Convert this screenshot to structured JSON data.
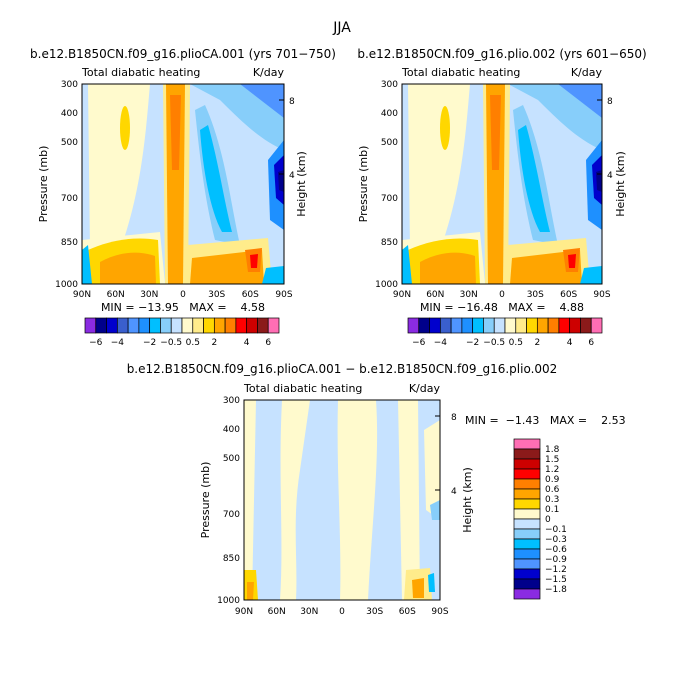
{
  "page_title": "JJA",
  "chart_data": [
    {
      "type": "heatmap",
      "title": "b.e12.B1850CN.f09_g16.plioCA.001 (yrs 701−750)",
      "left_string": "Total diabatic heating",
      "right_string": "K/day",
      "xlabel": "",
      "ylabel": "Pressure (mb)",
      "ylabel_right": "Height (km)",
      "x_ticks": [
        "90N",
        "60N",
        "30N",
        "0",
        "30S",
        "60S",
        "90S"
      ],
      "y_ticks": [
        "300",
        "400",
        "500",
        "700",
        "850",
        "1000"
      ],
      "y_right_ticks": [
        "8",
        "4"
      ],
      "stats_text": "MIN = −13.95   MAX =    4.58"
    },
    {
      "type": "heatmap",
      "title": "b.e12.B1850CN.f09_g16.plio.002 (yrs 601−650)",
      "left_string": "Total diabatic heating",
      "right_string": "K/day",
      "xlabel": "",
      "ylabel": "Pressure (mb)",
      "ylabel_right": "Height (km)",
      "x_ticks": [
        "90N",
        "60N",
        "30N",
        "0",
        "30S",
        "60S",
        "90S"
      ],
      "y_ticks": [
        "300",
        "400",
        "500",
        "700",
        "850",
        "1000"
      ],
      "y_right_ticks": [
        "8",
        "4"
      ],
      "stats_text": "MIN = −16.48   MAX =    4.88"
    },
    {
      "type": "heatmap",
      "title": "b.e12.B1850CN.f09_g16.plioCA.001 − b.e12.B1850CN.f09_g16.plio.002",
      "left_string": "Total diabatic heating",
      "right_string": "K/day",
      "xlabel": "",
      "ylabel": "Pressure (mb)",
      "ylabel_right": "Height (km)",
      "x_ticks": [
        "90N",
        "60N",
        "30N",
        "0",
        "30S",
        "60S",
        "90S"
      ],
      "y_ticks": [
        "300",
        "400",
        "500",
        "700",
        "850",
        "1000"
      ],
      "y_right_ticks": [
        "8",
        "4"
      ],
      "stats_text": "MIN =  −1.43   MAX =    2.53"
    }
  ],
  "colorbar_top": {
    "labels": [
      "−6",
      "−4",
      "−2",
      "−0.5",
      "0.5",
      "2",
      "4",
      "6"
    ],
    "colors": [
      "#8a2be2",
      "#00008b",
      "#0000cd",
      "#3a5fcd",
      "#4f94ff",
      "#1e90ff",
      "#00bfff",
      "#87cefa",
      "#c6e2ff",
      "#fffacd",
      "#ffec8b",
      "#ffd700",
      "#ffa500",
      "#ff7f00",
      "#ff0000",
      "#cd0000",
      "#8b1a1a",
      "#ff6eb4"
    ]
  },
  "colorbar_diff": {
    "labels": [
      "1.8",
      "1.5",
      "1.2",
      "0.9",
      "0.6",
      "0.3",
      "0.1",
      "0",
      "−0.1",
      "−0.3",
      "−0.6",
      "−0.9",
      "−1.2",
      "−1.5",
      "−1.8"
    ],
    "colors": [
      "#ff6eb4",
      "#8b1a1a",
      "#cd0000",
      "#ff0000",
      "#ff7f00",
      "#ffa500",
      "#ffd700",
      "#fffacd",
      "#c6e2ff",
      "#87cefa",
      "#00bfff",
      "#1e90ff",
      "#4f94ff",
      "#0000cd",
      "#00008b",
      "#8a2be2"
    ]
  }
}
